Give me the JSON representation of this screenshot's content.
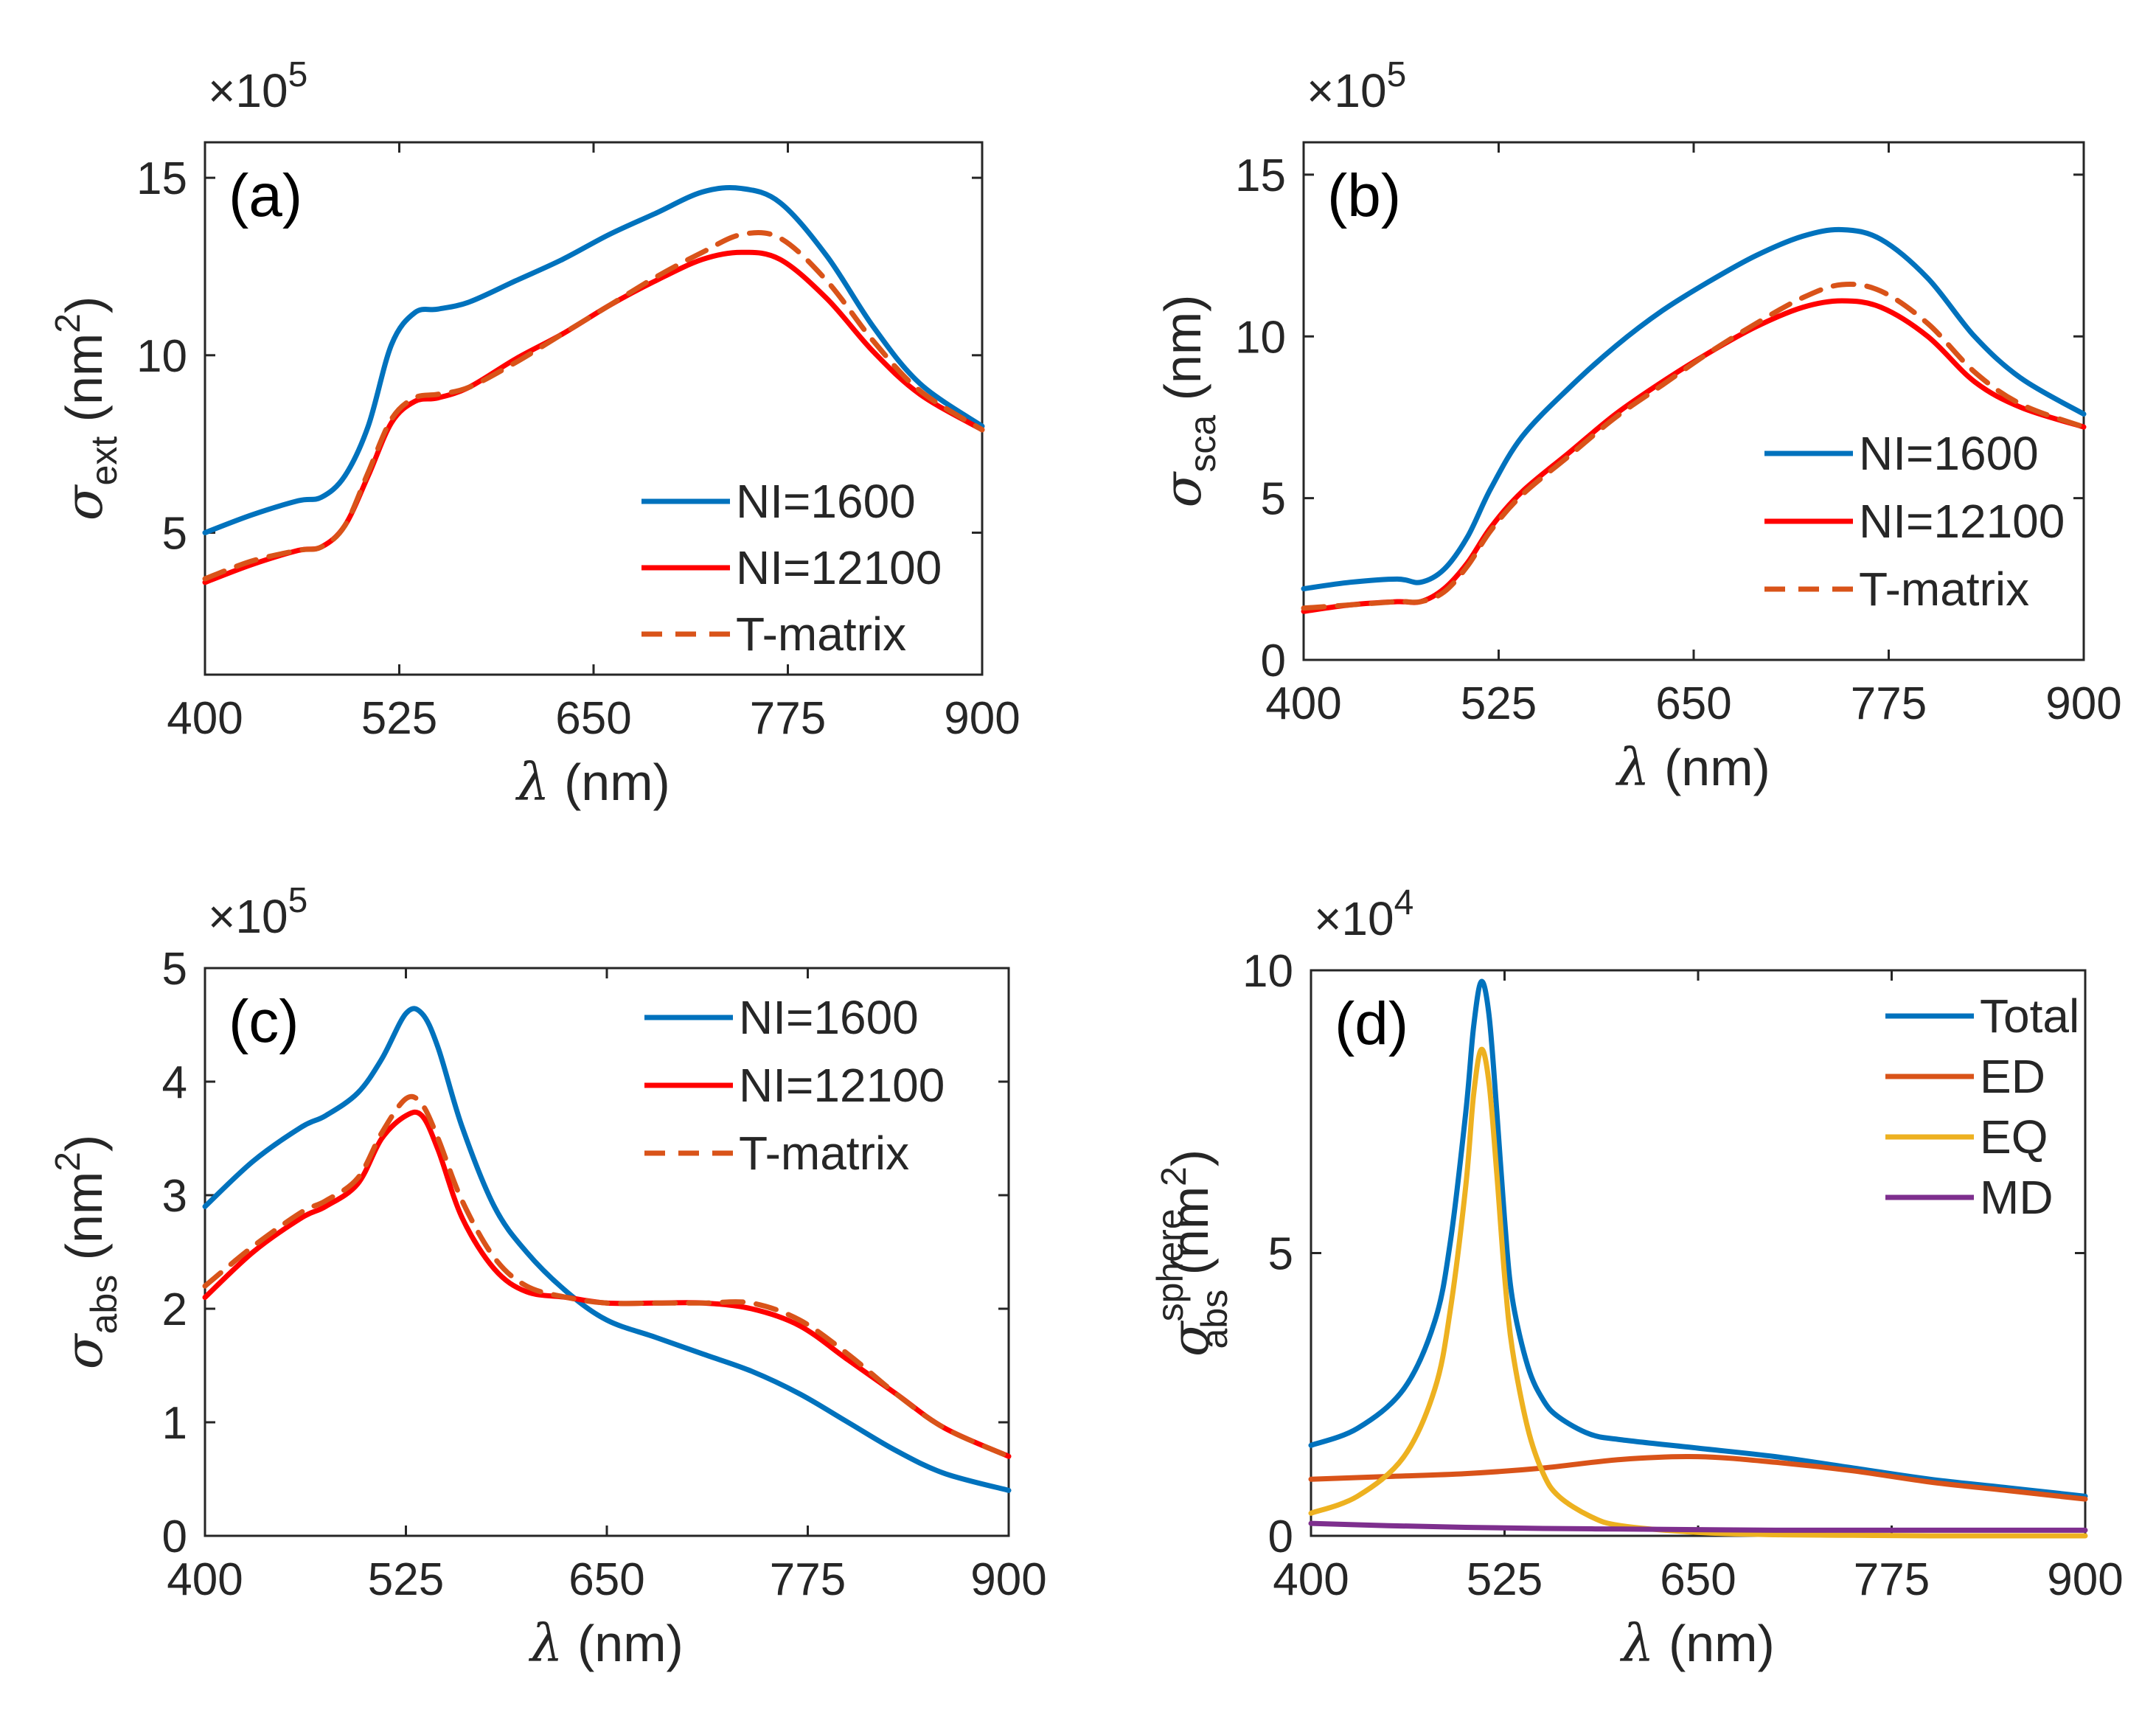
{
  "chart_data": [
    {
      "id": "a",
      "type": "line",
      "panel_label": "(a)",
      "exponent": {
        "times": "×10",
        "power": "5"
      },
      "xlabel": {
        "symbol": "λ",
        "unit": "(nm)"
      },
      "ylabel": {
        "symbol": "σ",
        "sub": "ext",
        "unit_pre": "(nm",
        "unit_sup": "2",
        "unit_post": ")"
      },
      "xlim": [
        400,
        900
      ],
      "ylim": [
        1,
        16
      ],
      "xticks": [
        400,
        525,
        650,
        775,
        900
      ],
      "yticks": [
        5,
        10,
        15
      ],
      "legend_position": "bottom-right",
      "series": [
        {
          "name": "NI=1600",
          "color": "#0072BD",
          "dash": false,
          "x": [
            400,
            430,
            460,
            475,
            490,
            505,
            520,
            535,
            550,
            570,
            600,
            630,
            660,
            690,
            720,
            745,
            770,
            800,
            830,
            860,
            900
          ],
          "y": [
            5.0,
            5.5,
            5.9,
            6.0,
            6.6,
            8.0,
            10.3,
            11.2,
            11.3,
            11.5,
            12.1,
            12.7,
            13.4,
            14.0,
            14.6,
            14.7,
            14.3,
            12.8,
            10.8,
            9.2,
            8.0
          ]
        },
        {
          "name": "NI=12100",
          "color": "#FF0000",
          "dash": false,
          "x": [
            400,
            430,
            460,
            475,
            490,
            505,
            520,
            535,
            550,
            570,
            600,
            630,
            660,
            690,
            720,
            745,
            770,
            800,
            830,
            860,
            900
          ],
          "y": [
            3.6,
            4.1,
            4.5,
            4.6,
            5.2,
            6.6,
            8.1,
            8.7,
            8.8,
            9.1,
            9.9,
            10.6,
            11.4,
            12.1,
            12.7,
            12.9,
            12.7,
            11.6,
            10.1,
            8.9,
            7.9
          ]
        },
        {
          "name": "T-matrix",
          "color": "#D95319",
          "dash": true,
          "x": [
            400,
            430,
            460,
            475,
            490,
            505,
            520,
            535,
            550,
            570,
            600,
            630,
            660,
            690,
            720,
            745,
            770,
            800,
            830,
            860,
            900
          ],
          "y": [
            3.7,
            4.2,
            4.5,
            4.6,
            5.2,
            6.7,
            8.2,
            8.8,
            8.9,
            9.1,
            9.8,
            10.6,
            11.4,
            12.2,
            12.9,
            13.4,
            13.3,
            12.1,
            10.4,
            9.0,
            7.9
          ]
        }
      ]
    },
    {
      "id": "b",
      "type": "line",
      "panel_label": "(b)",
      "exponent": {
        "times": "×10",
        "power": "5"
      },
      "xlabel": {
        "symbol": "λ",
        "unit": "(nm)"
      },
      "ylabel": {
        "symbol": "σ",
        "sub": "sca",
        "unit_pre": "(nm)",
        "unit_sup": "",
        "unit_post": ""
      },
      "xlim": [
        400,
        900
      ],
      "ylim": [
        0,
        16
      ],
      "xticks": [
        400,
        525,
        650,
        775,
        900
      ],
      "yticks": [
        0,
        5,
        10,
        15
      ],
      "legend_position": "bottom-right",
      "series": [
        {
          "name": "NI=1600",
          "color": "#0072BD",
          "dash": false,
          "x": [
            400,
            430,
            460,
            475,
            490,
            505,
            520,
            540,
            570,
            600,
            630,
            660,
            690,
            720,
            745,
            770,
            800,
            830,
            860,
            900
          ],
          "y": [
            2.2,
            2.4,
            2.5,
            2.4,
            2.8,
            3.8,
            5.3,
            6.9,
            8.4,
            9.7,
            10.8,
            11.7,
            12.5,
            13.1,
            13.3,
            13.0,
            11.8,
            10.0,
            8.7,
            7.6
          ]
        },
        {
          "name": "NI=12100",
          "color": "#FF0000",
          "dash": false,
          "x": [
            400,
            430,
            460,
            475,
            490,
            505,
            520,
            540,
            570,
            600,
            630,
            660,
            690,
            720,
            745,
            770,
            800,
            830,
            860,
            900
          ],
          "y": [
            1.5,
            1.7,
            1.8,
            1.8,
            2.2,
            3.0,
            4.1,
            5.2,
            6.4,
            7.6,
            8.6,
            9.5,
            10.3,
            10.9,
            11.1,
            10.9,
            10.0,
            8.6,
            7.8,
            7.2
          ]
        },
        {
          "name": "T-matrix",
          "color": "#D95319",
          "dash": true,
          "x": [
            400,
            430,
            460,
            475,
            490,
            505,
            520,
            540,
            570,
            600,
            630,
            660,
            690,
            720,
            745,
            770,
            800,
            830,
            860,
            900
          ],
          "y": [
            1.6,
            1.7,
            1.8,
            1.8,
            2.1,
            2.9,
            4.0,
            5.1,
            6.3,
            7.5,
            8.5,
            9.5,
            10.4,
            11.2,
            11.6,
            11.4,
            10.4,
            8.9,
            7.9,
            7.2
          ]
        }
      ]
    },
    {
      "id": "c",
      "type": "line",
      "panel_label": "(c)",
      "exponent": {
        "times": "×10",
        "power": "5"
      },
      "xlabel": {
        "symbol": "λ",
        "unit": "(nm)"
      },
      "ylabel": {
        "symbol": "σ",
        "sub": "abs",
        "unit_pre": "(nm",
        "unit_sup": "2",
        "unit_post": ")"
      },
      "xlim": [
        400,
        900
      ],
      "ylim": [
        0,
        5
      ],
      "xticks": [
        400,
        525,
        650,
        775,
        900
      ],
      "yticks": [
        0,
        1,
        2,
        3,
        4,
        5
      ],
      "legend_position": "top-right",
      "series": [
        {
          "name": "NI=1600",
          "color": "#0072BD",
          "dash": false,
          "x": [
            400,
            430,
            460,
            475,
            495,
            510,
            525,
            535,
            545,
            560,
            580,
            600,
            625,
            650,
            680,
            710,
            740,
            770,
            800,
            830,
            860,
            900
          ],
          "y": [
            2.9,
            3.3,
            3.6,
            3.7,
            3.9,
            4.2,
            4.6,
            4.6,
            4.3,
            3.6,
            2.9,
            2.5,
            2.15,
            1.9,
            1.75,
            1.6,
            1.45,
            1.25,
            1.0,
            0.75,
            0.55,
            0.4
          ]
        },
        {
          "name": "NI=12100",
          "color": "#FF0000",
          "dash": false,
          "x": [
            400,
            430,
            460,
            475,
            495,
            510,
            525,
            535,
            545,
            560,
            580,
            600,
            625,
            650,
            680,
            710,
            740,
            770,
            800,
            830,
            860,
            900
          ],
          "y": [
            2.1,
            2.5,
            2.8,
            2.9,
            3.1,
            3.5,
            3.7,
            3.7,
            3.4,
            2.8,
            2.35,
            2.15,
            2.1,
            2.05,
            2.05,
            2.05,
            2.0,
            1.85,
            1.55,
            1.25,
            0.95,
            0.7
          ]
        },
        {
          "name": "T-matrix",
          "color": "#D95319",
          "dash": true,
          "x": [
            400,
            430,
            460,
            475,
            495,
            510,
            525,
            535,
            545,
            560,
            580,
            600,
            625,
            650,
            680,
            710,
            740,
            770,
            800,
            830,
            860,
            900
          ],
          "y": [
            2.2,
            2.55,
            2.85,
            2.95,
            3.15,
            3.55,
            3.85,
            3.8,
            3.5,
            2.95,
            2.45,
            2.2,
            2.1,
            2.05,
            2.05,
            2.05,
            2.05,
            1.9,
            1.6,
            1.25,
            0.95,
            0.7
          ]
        }
      ]
    },
    {
      "id": "d",
      "type": "line",
      "panel_label": "(d)",
      "exponent": {
        "times": "×10",
        "power": "4"
      },
      "xlabel": {
        "symbol": "λ",
        "unit": "(nm)"
      },
      "ylabel": {
        "symbol": "σ",
        "sub": "abs",
        "sup": "sphere",
        "unit_pre": "(nm",
        "unit_sup": "2",
        "unit_post": ")"
      },
      "xlim": [
        400,
        900
      ],
      "ylim": [
        0,
        10
      ],
      "xticks": [
        400,
        525,
        650,
        775,
        900
      ],
      "yticks": [
        0,
        5,
        10
      ],
      "legend_position": "top-right",
      "series": [
        {
          "name": "Total",
          "color": "#0072BD",
          "dash": false,
          "x": [
            400,
            430,
            460,
            480,
            490,
            500,
            505,
            510,
            515,
            520,
            525,
            530,
            540,
            550,
            560,
            580,
            600,
            650,
            700,
            750,
            800,
            850,
            900
          ],
          "y": [
            1.6,
            1.9,
            2.6,
            3.8,
            5.2,
            7.5,
            9.0,
            9.8,
            9.2,
            7.5,
            5.6,
            4.2,
            3.0,
            2.4,
            2.1,
            1.8,
            1.7,
            1.55,
            1.4,
            1.2,
            1.0,
            0.85,
            0.7
          ]
        },
        {
          "name": "ED",
          "color": "#D95319",
          "dash": false,
          "x": [
            400,
            450,
            500,
            550,
            600,
            650,
            700,
            750,
            800,
            850,
            900
          ],
          "y": [
            1.0,
            1.05,
            1.1,
            1.2,
            1.35,
            1.4,
            1.3,
            1.15,
            0.95,
            0.8,
            0.65
          ]
        },
        {
          "name": "EQ",
          "color": "#EDB120",
          "dash": false,
          "x": [
            400,
            430,
            460,
            480,
            490,
            500,
            505,
            510,
            515,
            520,
            525,
            530,
            540,
            550,
            560,
            580,
            600,
            650,
            700,
            750,
            800,
            900
          ],
          "y": [
            0.4,
            0.7,
            1.4,
            2.6,
            4.0,
            6.2,
            7.8,
            8.6,
            8.0,
            6.4,
            4.6,
            3.3,
            1.9,
            1.1,
            0.7,
            0.35,
            0.18,
            0.06,
            0.02,
            0.01,
            0.0,
            0.0
          ]
        },
        {
          "name": "MD",
          "color": "#7E2F8E",
          "dash": false,
          "x": [
            400,
            450,
            500,
            550,
            600,
            650,
            700,
            800,
            900
          ],
          "y": [
            0.22,
            0.18,
            0.15,
            0.13,
            0.12,
            0.11,
            0.1,
            0.1,
            0.1
          ]
        }
      ]
    }
  ]
}
